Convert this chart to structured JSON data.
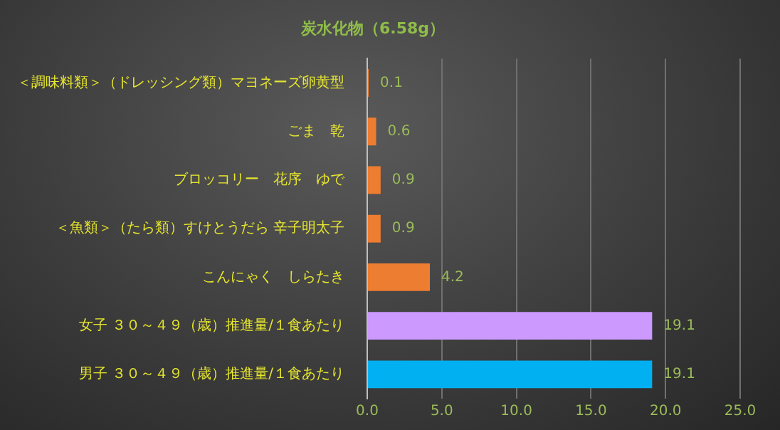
{
  "chart_data": {
    "type": "bar",
    "orientation": "horizontal",
    "title": "炭水化物（6.58g）",
    "categories": [
      "＜調味料類＞（ドレッシング類）マヨネーズ卵黄型",
      "ごま　乾",
      "ブロッコリー　花序　ゆで",
      "＜魚類＞（たら類）すけとうだら 辛子明太子",
      "こんにゃく　しらたき",
      "女子 ３０～４９（歳）推進量/１食あたり",
      "男子 ３０～４９（歳）推進量/１食あたり"
    ],
    "values": [
      0.1,
      0.6,
      0.9,
      0.9,
      4.2,
      19.1,
      19.1
    ],
    "colors": [
      "#ed7d31",
      "#ed7d31",
      "#ed7d31",
      "#ed7d31",
      "#ed7d31",
      "#cc99ff",
      "#00b0f0"
    ],
    "xlim": [
      0,
      25
    ],
    "xticks": [
      {
        "value": 0,
        "label": "0.0"
      },
      {
        "value": 5,
        "label": "5.0"
      },
      {
        "value": 10,
        "label": "10.0"
      },
      {
        "value": 15,
        "label": "15.0"
      },
      {
        "value": 20,
        "label": "20.0"
      },
      {
        "value": 25,
        "label": "25.0"
      }
    ],
    "grid": "x",
    "data_labels": true,
    "legend": false
  }
}
